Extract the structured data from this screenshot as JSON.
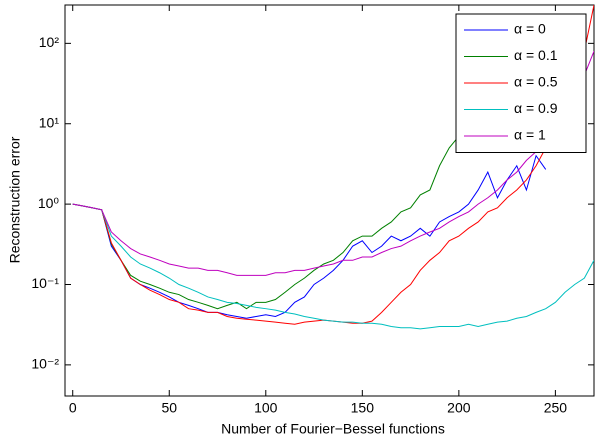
{
  "chart_data": {
    "type": "line",
    "xlabel": "Number of Fourier−Bessel functions",
    "ylabel": "Reconstruction error",
    "x": [
      0,
      5,
      10,
      15,
      20,
      25,
      30,
      35,
      40,
      45,
      50,
      55,
      60,
      65,
      70,
      75,
      80,
      85,
      90,
      95,
      100,
      105,
      110,
      115,
      120,
      125,
      130,
      135,
      140,
      145,
      150,
      155,
      160,
      165,
      170,
      175,
      180,
      185,
      190,
      195,
      200,
      205,
      210,
      215,
      220,
      225,
      230,
      235,
      240,
      245,
      250,
      255,
      260,
      265,
      270
    ],
    "series": [
      {
        "name": "α = 0",
        "color": "#0000ff",
        "values": [
          1,
          0.95,
          0.9,
          0.85,
          0.3,
          0.2,
          0.12,
          0.1,
          0.09,
          0.08,
          0.07,
          0.06,
          0.055,
          0.05,
          0.045,
          0.045,
          0.042,
          0.04,
          0.038,
          0.04,
          0.042,
          0.04,
          0.045,
          0.06,
          0.07,
          0.1,
          0.12,
          0.15,
          0.2,
          0.3,
          0.35,
          0.25,
          0.3,
          0.4,
          0.35,
          0.4,
          0.5,
          0.4,
          0.6,
          0.7,
          0.8,
          1.0,
          1.5,
          2.5,
          1.2,
          2.0,
          3.0,
          1.5,
          4.0,
          2.7,
          null,
          null,
          null,
          null,
          null
        ]
      },
      {
        "name": "α = 0.1",
        "color": "#008000",
        "values": [
          1,
          0.95,
          0.9,
          0.85,
          0.32,
          0.2,
          0.13,
          0.11,
          0.1,
          0.09,
          0.08,
          0.075,
          0.065,
          0.06,
          0.055,
          0.05,
          0.055,
          0.06,
          0.05,
          0.06,
          0.06,
          0.065,
          0.08,
          0.1,
          0.12,
          0.15,
          0.18,
          0.2,
          0.25,
          0.35,
          0.4,
          0.4,
          0.5,
          0.6,
          0.8,
          0.9,
          1.3,
          1.5,
          3,
          5,
          7,
          14,
          8,
          12,
          20,
          30,
          60,
          100,
          200,
          null,
          null,
          null,
          null,
          null,
          null
        ]
      },
      {
        "name": "α = 0.5",
        "color": "#ff0000",
        "values": [
          1,
          0.95,
          0.9,
          0.85,
          0.33,
          0.2,
          0.12,
          0.1,
          0.085,
          0.075,
          0.065,
          0.06,
          0.05,
          0.048,
          0.045,
          0.045,
          0.04,
          0.038,
          0.037,
          0.036,
          0.035,
          0.034,
          0.033,
          0.032,
          0.034,
          0.035,
          0.036,
          0.035,
          0.034,
          0.033,
          0.033,
          0.035,
          0.045,
          0.06,
          0.08,
          0.1,
          0.15,
          0.2,
          0.25,
          0.35,
          0.4,
          0.5,
          0.6,
          0.8,
          0.9,
          1.2,
          1.5,
          2.0,
          3,
          5,
          8,
          15,
          30,
          80,
          300
        ]
      },
      {
        "name": "α = 0.9",
        "color": "#00bfbf",
        "values": [
          1,
          0.95,
          0.9,
          0.85,
          0.4,
          0.3,
          0.22,
          0.18,
          0.16,
          0.14,
          0.12,
          0.1,
          0.09,
          0.08,
          0.07,
          0.065,
          0.06,
          0.058,
          0.055,
          0.052,
          0.05,
          0.048,
          0.045,
          0.043,
          0.04,
          0.038,
          0.036,
          0.035,
          0.034,
          0.034,
          0.033,
          0.033,
          0.032,
          0.03,
          0.029,
          0.029,
          0.028,
          0.029,
          0.03,
          0.03,
          0.03,
          0.032,
          0.03,
          0.032,
          0.034,
          0.035,
          0.038,
          0.04,
          0.045,
          0.05,
          0.06,
          0.08,
          0.1,
          0.12,
          0.2
        ]
      },
      {
        "name": "α = 1",
        "color": "#bf00bf",
        "values": [
          1,
          0.95,
          0.9,
          0.85,
          0.45,
          0.35,
          0.28,
          0.24,
          0.22,
          0.2,
          0.18,
          0.17,
          0.16,
          0.16,
          0.15,
          0.15,
          0.14,
          0.13,
          0.13,
          0.13,
          0.13,
          0.14,
          0.14,
          0.15,
          0.15,
          0.16,
          0.17,
          0.18,
          0.2,
          0.2,
          0.22,
          0.22,
          0.25,
          0.28,
          0.3,
          0.35,
          0.4,
          0.45,
          0.5,
          0.6,
          0.7,
          0.8,
          1.0,
          1.2,
          1.5,
          2,
          2.5,
          3.5,
          4.5,
          6,
          8,
          12,
          20,
          40,
          80
        ]
      }
    ],
    "xlim": [
      -4,
      270
    ],
    "ylim": [
      0.0041,
      300
    ],
    "xticks": [
      0,
      50,
      100,
      150,
      200,
      250
    ],
    "yticks": [
      {
        "value": 0.01,
        "label": "10⁻²"
      },
      {
        "value": 0.1,
        "label": "10⁻¹"
      },
      {
        "value": 1,
        "label": "10⁰"
      },
      {
        "value": 10,
        "label": "10¹"
      },
      {
        "value": 100,
        "label": "10²"
      }
    ],
    "log_y": true,
    "grid": false,
    "legend": "upper-right"
  }
}
